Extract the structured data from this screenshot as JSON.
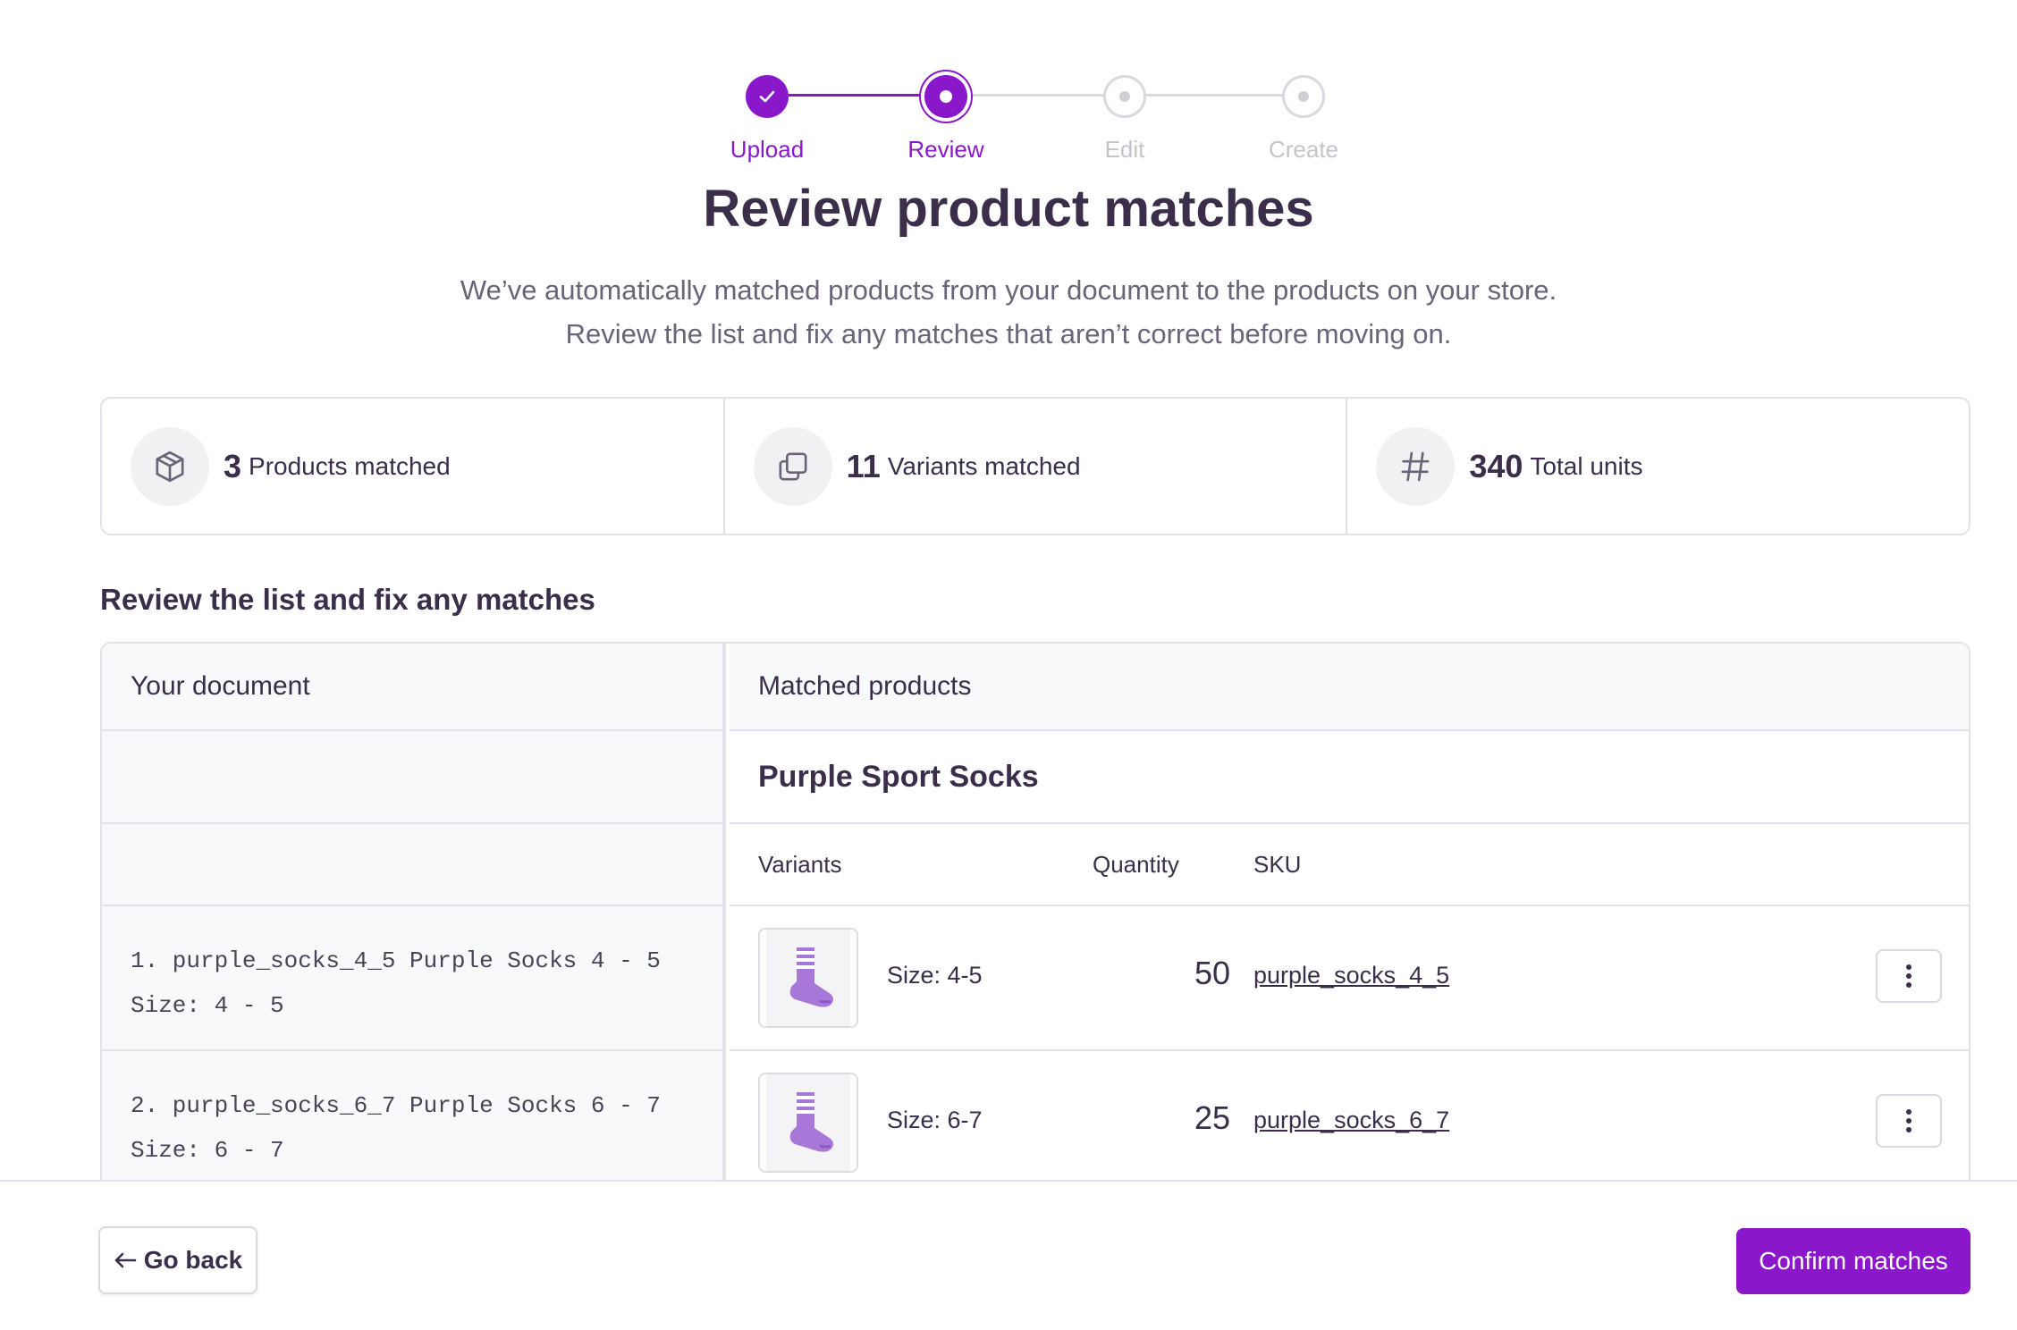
{
  "stepper": {
    "steps": [
      {
        "label": "Upload",
        "state": "done"
      },
      {
        "label": "Review",
        "state": "current"
      },
      {
        "label": "Edit",
        "state": "todo"
      },
      {
        "label": "Create",
        "state": "todo"
      }
    ]
  },
  "header": {
    "title": "Review product matches",
    "subtitle_line1": "We’ve automatically matched products from your document to the products on your store.",
    "subtitle_line2": "Review the list and fix any matches that aren’t correct before moving on."
  },
  "stats": [
    {
      "value": "3",
      "label": "Products matched",
      "icon": "cube-icon"
    },
    {
      "value": "11",
      "label": "Variants matched",
      "icon": "copy-icon"
    },
    {
      "value": "340",
      "label": "Total units",
      "icon": "hash-icon"
    }
  ],
  "section_title": "Review the list and fix any matches",
  "table": {
    "left_header": "Your document",
    "right_header": "Matched products",
    "product_name": "Purple Sport Socks",
    "columns": {
      "variants": "Variants",
      "quantity": "Quantity",
      "sku": "SKU"
    },
    "rows": [
      {
        "doc_line1": "1. purple_socks_4_5 Purple Socks 4 - 5",
        "doc_line2": "Size: 4 - 5",
        "variant": "Size: 4-5",
        "quantity": "50",
        "sku": "purple_socks_4_5"
      },
      {
        "doc_line1": "2. purple_socks_6_7 Purple Socks 6 - 7",
        "doc_line2": "Size: 6 - 7",
        "variant": "Size: 6-7",
        "quantity": "25",
        "sku": "purple_socks_6_7"
      }
    ]
  },
  "footer": {
    "back_label": "Go back",
    "confirm_label": "Confirm matches"
  },
  "colors": {
    "accent": "#8a17c9",
    "text": "#3a2e4a",
    "muted": "#6b6478",
    "border": "#e2e2e8"
  }
}
